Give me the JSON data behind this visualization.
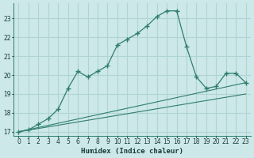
{
  "xlabel": "Humidex (Indice chaleur)",
  "background_color": "#cce8e8",
  "grid_color": "#b0d4d4",
  "line_color": "#2e7d6e",
  "xlim": [
    -0.5,
    23.5
  ],
  "ylim": [
    16.8,
    23.8
  ],
  "yticks": [
    17,
    18,
    19,
    20,
    21,
    22,
    23
  ],
  "xticks": [
    0,
    1,
    2,
    3,
    4,
    5,
    6,
    7,
    8,
    9,
    10,
    11,
    12,
    13,
    14,
    15,
    16,
    17,
    18,
    19,
    20,
    21,
    22,
    23
  ],
  "curve_main_x": [
    0,
    1,
    2,
    3,
    4,
    5,
    6,
    7,
    8,
    9,
    10,
    11,
    12,
    13,
    14,
    15,
    16,
    17,
    18,
    19,
    20,
    21,
    22,
    23
  ],
  "curve_main_y": [
    17.0,
    17.1,
    17.4,
    17.7,
    18.2,
    19.3,
    20.2,
    19.9,
    20.2,
    20.5,
    21.6,
    21.9,
    22.2,
    22.6,
    23.1,
    23.4,
    23.4,
    21.5,
    19.9,
    19.3,
    19.4,
    20.1,
    20.1,
    19.6
  ],
  "curve_line1_x": [
    0,
    23
  ],
  "curve_line1_y": [
    17.0,
    19.6
  ],
  "curve_line2_x": [
    0,
    23
  ],
  "curve_line2_y": [
    17.0,
    19.0
  ]
}
